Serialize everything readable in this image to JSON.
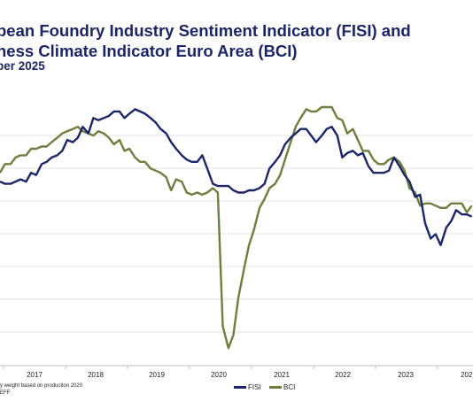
{
  "titles": {
    "line1": "pean Foundry Industry Sentiment Indicator (FISI) and",
    "line2": "ness Climate Indicator Euro Area (BCI)",
    "line3": "ber 2025"
  },
  "footnotes": {
    "line1": "y weight based on production 2020",
    "line2": "EFF"
  },
  "chart_data": {
    "type": "line",
    "title": "",
    "xlabel": "",
    "ylabel": "",
    "x_tick_labels": [
      "2017",
      "2018",
      "2019",
      "2020",
      "2021",
      "2022",
      "2023",
      "202"
    ],
    "y_gridlines": 7,
    "grid": "horizontal",
    "legend_position": "bottom",
    "series": [
      {
        "name": "FISI",
        "color": "#1c2566",
        "values": [
          [
            2016.5,
            4.4
          ],
          [
            2016.58,
            4.3
          ],
          [
            2016.67,
            4.3
          ],
          [
            2016.75,
            4.4
          ],
          [
            2016.83,
            4.5
          ],
          [
            2016.92,
            4.4
          ],
          [
            2017.0,
            4.8
          ],
          [
            2017.08,
            4.7
          ],
          [
            2017.17,
            5.2
          ],
          [
            2017.25,
            5.3
          ],
          [
            2017.33,
            5.5
          ],
          [
            2017.42,
            5.6
          ],
          [
            2017.5,
            5.8
          ],
          [
            2017.58,
            6.3
          ],
          [
            2017.67,
            6.2
          ],
          [
            2017.75,
            6.4
          ],
          [
            2017.83,
            6.9
          ],
          [
            2017.92,
            6.6
          ],
          [
            2018.0,
            7.3
          ],
          [
            2018.08,
            7.2
          ],
          [
            2018.17,
            7.3
          ],
          [
            2018.25,
            7.4
          ],
          [
            2018.33,
            7.6
          ],
          [
            2018.42,
            7.6
          ],
          [
            2018.5,
            7.3
          ],
          [
            2018.58,
            7.5
          ],
          [
            2018.67,
            7.7
          ],
          [
            2018.75,
            7.6
          ],
          [
            2018.83,
            7.5
          ],
          [
            2018.92,
            7.3
          ],
          [
            2019.0,
            7.1
          ],
          [
            2019.08,
            6.8
          ],
          [
            2019.17,
            6.6
          ],
          [
            2019.25,
            6.2
          ],
          [
            2019.33,
            5.9
          ],
          [
            2019.42,
            5.6
          ],
          [
            2019.5,
            5.4
          ],
          [
            2019.58,
            5.3
          ],
          [
            2019.67,
            5.3
          ],
          [
            2019.75,
            5.6
          ],
          [
            2019.83,
            5.0
          ],
          [
            2019.92,
            4.3
          ],
          [
            2020.0,
            4.2
          ],
          [
            2020.08,
            4.2
          ],
          [
            2020.17,
            4.2
          ],
          [
            2020.25,
            4.0
          ],
          [
            2020.33,
            3.9
          ],
          [
            2020.42,
            3.9
          ],
          [
            2020.5,
            4.0
          ],
          [
            2020.58,
            4.0
          ],
          [
            2020.67,
            4.1
          ],
          [
            2020.75,
            4.3
          ],
          [
            2020.83,
            5.0
          ],
          [
            2020.92,
            5.3
          ],
          [
            2021.0,
            5.6
          ],
          [
            2021.08,
            6.1
          ],
          [
            2021.17,
            6.4
          ],
          [
            2021.25,
            6.6
          ],
          [
            2021.33,
            6.8
          ],
          [
            2021.42,
            6.8
          ],
          [
            2021.5,
            6.5
          ],
          [
            2021.58,
            6.2
          ],
          [
            2021.67,
            6.5
          ],
          [
            2021.75,
            6.8
          ],
          [
            2021.83,
            6.9
          ],
          [
            2021.92,
            6.5
          ],
          [
            2022.0,
            5.5
          ],
          [
            2022.08,
            5.7
          ],
          [
            2022.17,
            5.8
          ],
          [
            2022.25,
            5.6
          ],
          [
            2022.33,
            5.7
          ],
          [
            2022.42,
            5.1
          ],
          [
            2022.5,
            4.8
          ],
          [
            2022.58,
            4.8
          ],
          [
            2022.67,
            4.8
          ],
          [
            2022.75,
            4.9
          ],
          [
            2022.83,
            5.5
          ],
          [
            2022.92,
            5.1
          ],
          [
            2023.0,
            4.7
          ],
          [
            2023.08,
            4.4
          ],
          [
            2023.17,
            3.7
          ],
          [
            2023.25,
            3.8
          ],
          [
            2023.33,
            2.5
          ],
          [
            2023.42,
            1.8
          ],
          [
            2023.5,
            2.0
          ],
          [
            2023.58,
            1.5
          ],
          [
            2023.67,
            2.3
          ],
          [
            2023.75,
            2.6
          ],
          [
            2023.83,
            3.1
          ],
          [
            2023.92,
            2.9
          ],
          [
            2024.0,
            2.9
          ],
          [
            2024.08,
            2.8
          ]
        ]
      },
      {
        "name": "BCI",
        "color": "#6e7e3e",
        "values": [
          [
            2016.5,
            4.8
          ],
          [
            2016.58,
            5.2
          ],
          [
            2016.67,
            5.2
          ],
          [
            2016.75,
            5.5
          ],
          [
            2016.83,
            5.6
          ],
          [
            2016.92,
            5.6
          ],
          [
            2017.0,
            5.9
          ],
          [
            2017.08,
            5.9
          ],
          [
            2017.17,
            6.0
          ],
          [
            2017.25,
            6.0
          ],
          [
            2017.33,
            6.2
          ],
          [
            2017.42,
            6.4
          ],
          [
            2017.5,
            6.6
          ],
          [
            2017.58,
            6.7
          ],
          [
            2017.67,
            6.8
          ],
          [
            2017.75,
            6.9
          ],
          [
            2017.83,
            6.7
          ],
          [
            2017.92,
            6.6
          ],
          [
            2018.0,
            6.5
          ],
          [
            2018.08,
            6.7
          ],
          [
            2018.17,
            6.6
          ],
          [
            2018.25,
            6.4
          ],
          [
            2018.33,
            6.1
          ],
          [
            2018.42,
            6.3
          ],
          [
            2018.5,
            5.8
          ],
          [
            2018.58,
            5.9
          ],
          [
            2018.67,
            5.5
          ],
          [
            2018.75,
            5.3
          ],
          [
            2018.83,
            5.3
          ],
          [
            2018.92,
            5.0
          ],
          [
            2019.0,
            4.9
          ],
          [
            2019.08,
            4.8
          ],
          [
            2019.17,
            4.6
          ],
          [
            2019.25,
            4.0
          ],
          [
            2019.33,
            4.5
          ],
          [
            2019.42,
            4.4
          ],
          [
            2019.5,
            3.9
          ],
          [
            2019.58,
            3.8
          ],
          [
            2019.67,
            3.9
          ],
          [
            2019.75,
            3.8
          ],
          [
            2019.83,
            3.9
          ],
          [
            2019.92,
            4.1
          ],
          [
            2020.0,
            3.9
          ],
          [
            2020.08,
            -2.2
          ],
          [
            2020.17,
            -3.2
          ],
          [
            2020.25,
            -2.6
          ],
          [
            2020.33,
            -0.9
          ],
          [
            2020.42,
            0.4
          ],
          [
            2020.5,
            1.5
          ],
          [
            2020.58,
            2.2
          ],
          [
            2020.67,
            3.2
          ],
          [
            2020.75,
            3.6
          ],
          [
            2020.83,
            4.1
          ],
          [
            2020.92,
            4.3
          ],
          [
            2021.0,
            4.7
          ],
          [
            2021.08,
            5.4
          ],
          [
            2021.17,
            6.2
          ],
          [
            2021.25,
            6.9
          ],
          [
            2021.33,
            7.3
          ],
          [
            2021.42,
            7.7
          ],
          [
            2021.5,
            7.6
          ],
          [
            2021.58,
            7.6
          ],
          [
            2021.67,
            7.8
          ],
          [
            2021.75,
            7.8
          ],
          [
            2021.83,
            7.8
          ],
          [
            2021.92,
            7.3
          ],
          [
            2022.0,
            7.2
          ],
          [
            2022.08,
            6.6
          ],
          [
            2022.17,
            6.8
          ],
          [
            2022.25,
            6.3
          ],
          [
            2022.33,
            5.8
          ],
          [
            2022.42,
            5.8
          ],
          [
            2022.5,
            5.4
          ],
          [
            2022.58,
            5.2
          ],
          [
            2022.67,
            5.2
          ],
          [
            2022.75,
            5.4
          ],
          [
            2022.83,
            5.5
          ],
          [
            2022.92,
            5.3
          ],
          [
            2023.0,
            4.9
          ],
          [
            2023.08,
            4.1
          ],
          [
            2023.17,
            3.9
          ],
          [
            2023.25,
            3.3
          ],
          [
            2023.33,
            3.4
          ],
          [
            2023.42,
            3.4
          ],
          [
            2023.5,
            3.3
          ],
          [
            2023.58,
            3.2
          ],
          [
            2023.67,
            3.2
          ],
          [
            2023.75,
            3.4
          ],
          [
            2023.83,
            3.4
          ],
          [
            2023.92,
            3.4
          ],
          [
            2024.0,
            3.0
          ],
          [
            2024.08,
            3.3
          ]
        ]
      }
    ]
  }
}
